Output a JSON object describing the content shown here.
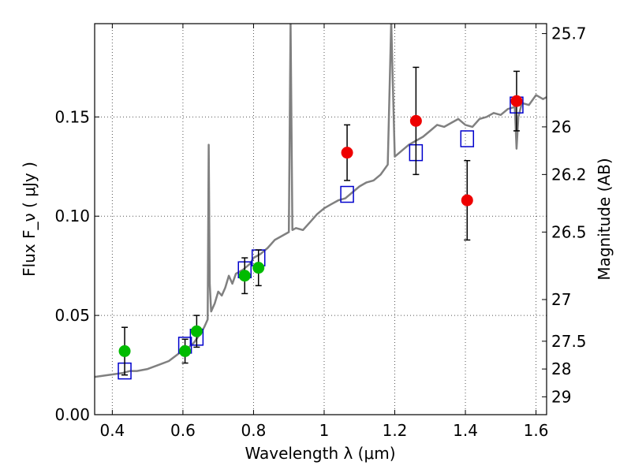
{
  "chart_data": {
    "type": "scatter",
    "xlabel": "Wavelength  λ (μm)",
    "ylabel": "Flux  F_ν  ( μJy )",
    "y2label": "Magnitude (AB)",
    "xlim": [
      0.35,
      1.63
    ],
    "ylim": [
      0.0,
      0.197
    ],
    "grid": true,
    "x_ticks": [
      0.4,
      0.6,
      0.8,
      1.0,
      1.2,
      1.4,
      1.6
    ],
    "x_tick_labels": [
      "0.4",
      "0.6",
      "0.8",
      "1",
      "1.2",
      "1.4",
      "1.6"
    ],
    "y_ticks": [
      0.0,
      0.05,
      0.1,
      0.15
    ],
    "y_tick_labels": [
      "0.00",
      "0.05",
      "0.10",
      "0.15"
    ],
    "y2_ticks": [
      {
        "label": "25.7",
        "flux": 0.192
      },
      {
        "label": "26",
        "flux": 0.145
      },
      {
        "label": "26.2",
        "flux": 0.121
      },
      {
        "label": "26.5",
        "flux": 0.092
      },
      {
        "label": "27",
        "flux": 0.058
      },
      {
        "label": "27.5",
        "flux": 0.037
      },
      {
        "label": "28",
        "flux": 0.023
      },
      {
        "label": "29",
        "flux": 0.009
      }
    ],
    "colors": {
      "model": "#808080",
      "green_points": "#00bb00",
      "red_points": "#ee0000",
      "squares": "#0000cc",
      "errorbars": "#000000",
      "grid": "#555555"
    },
    "series": [
      {
        "type": "line",
        "points": [
          [
            0.35,
            0.019
          ],
          [
            0.37,
            0.0195
          ],
          [
            0.39,
            0.02
          ],
          [
            0.41,
            0.0205
          ],
          [
            0.43,
            0.021
          ],
          [
            0.45,
            0.022
          ],
          [
            0.47,
            0.022
          ],
          [
            0.5,
            0.023
          ],
          [
            0.53,
            0.025
          ],
          [
            0.56,
            0.027
          ],
          [
            0.59,
            0.031
          ],
          [
            0.61,
            0.033
          ],
          [
            0.63,
            0.036
          ],
          [
            0.65,
            0.041
          ],
          [
            0.66,
            0.044
          ],
          [
            0.67,
            0.048
          ],
          [
            0.673,
            0.136
          ],
          [
            0.676,
            0.066
          ],
          [
            0.68,
            0.052
          ],
          [
            0.69,
            0.056
          ],
          [
            0.7,
            0.062
          ],
          [
            0.71,
            0.06
          ],
          [
            0.72,
            0.064
          ],
          [
            0.73,
            0.07
          ],
          [
            0.74,
            0.066
          ],
          [
            0.75,
            0.071
          ],
          [
            0.77,
            0.073
          ],
          [
            0.79,
            0.076
          ],
          [
            0.8,
            0.079
          ],
          [
            0.82,
            0.081
          ],
          [
            0.84,
            0.084
          ],
          [
            0.86,
            0.088
          ],
          [
            0.88,
            0.09
          ],
          [
            0.9,
            0.092
          ],
          [
            0.905,
            0.198
          ],
          [
            0.91,
            0.093
          ],
          [
            0.92,
            0.094
          ],
          [
            0.94,
            0.093
          ],
          [
            0.96,
            0.097
          ],
          [
            0.98,
            0.101
          ],
          [
            1.0,
            0.104
          ],
          [
            1.02,
            0.106
          ],
          [
            1.04,
            0.108
          ],
          [
            1.06,
            0.109
          ],
          [
            1.08,
            0.112
          ],
          [
            1.1,
            0.115
          ],
          [
            1.12,
            0.117
          ],
          [
            1.14,
            0.118
          ],
          [
            1.16,
            0.121
          ],
          [
            1.18,
            0.126
          ],
          [
            1.19,
            0.198
          ],
          [
            1.2,
            0.13
          ],
          [
            1.22,
            0.133
          ],
          [
            1.24,
            0.136
          ],
          [
            1.26,
            0.138
          ],
          [
            1.28,
            0.14
          ],
          [
            1.3,
            0.143
          ],
          [
            1.32,
            0.146
          ],
          [
            1.34,
            0.145
          ],
          [
            1.36,
            0.147
          ],
          [
            1.38,
            0.149
          ],
          [
            1.4,
            0.146
          ],
          [
            1.42,
            0.145
          ],
          [
            1.44,
            0.149
          ],
          [
            1.46,
            0.15
          ],
          [
            1.48,
            0.152
          ],
          [
            1.5,
            0.151
          ],
          [
            1.52,
            0.154
          ],
          [
            1.54,
            0.155
          ],
          [
            1.545,
            0.134
          ],
          [
            1.55,
            0.15
          ],
          [
            1.56,
            0.157
          ],
          [
            1.58,
            0.156
          ],
          [
            1.6,
            0.161
          ],
          [
            1.62,
            0.159
          ],
          [
            1.63,
            0.16
          ]
        ]
      },
      {
        "type": "errorbar",
        "marker": "circle",
        "color": "green",
        "points": [
          {
            "x": 0.435,
            "y": 0.032,
            "err": 0.012
          },
          {
            "x": 0.606,
            "y": 0.032,
            "err": 0.006
          },
          {
            "x": 0.639,
            "y": 0.042,
            "err": 0.008
          },
          {
            "x": 0.775,
            "y": 0.07,
            "err": 0.009
          },
          {
            "x": 0.814,
            "y": 0.074,
            "err": 0.009
          }
        ]
      },
      {
        "type": "errorbar",
        "marker": "circle",
        "color": "red",
        "points": [
          {
            "x": 1.065,
            "y": 0.132,
            "err": 0.014
          },
          {
            "x": 1.26,
            "y": 0.148,
            "err": 0.027
          },
          {
            "x": 1.405,
            "y": 0.108,
            "err": 0.02
          },
          {
            "x": 1.545,
            "y": 0.158,
            "err": 0.015
          }
        ]
      },
      {
        "type": "scatter",
        "marker": "square",
        "color": "blue",
        "points": [
          [
            0.435,
            0.022
          ],
          [
            0.606,
            0.035
          ],
          [
            0.639,
            0.039
          ],
          [
            0.775,
            0.073
          ],
          [
            0.814,
            0.079
          ],
          [
            1.065,
            0.111
          ],
          [
            1.26,
            0.132
          ],
          [
            1.405,
            0.139
          ],
          [
            1.545,
            0.156
          ]
        ]
      }
    ]
  }
}
